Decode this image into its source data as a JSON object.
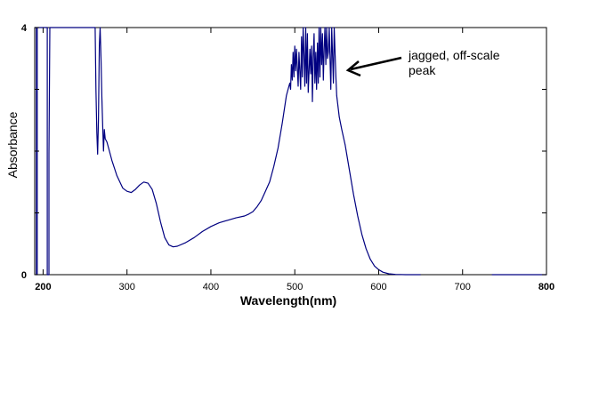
{
  "chart_data": {
    "type": "line",
    "title": "",
    "xlabel": "Wavelength(nm)",
    "ylabel": "Absorbance",
    "xlim": [
      190,
      800
    ],
    "ylim": [
      0,
      4
    ],
    "x_ticks": [
      {
        "value": 200,
        "label": "200",
        "bold": true
      },
      {
        "value": 300,
        "label": "300",
        "bold": false
      },
      {
        "value": 400,
        "label": "400",
        "bold": false
      },
      {
        "value": 500,
        "label": "500",
        "bold": false
      },
      {
        "value": 600,
        "label": "600",
        "bold": false
      },
      {
        "value": 700,
        "label": "700",
        "bold": false
      },
      {
        "value": 800,
        "label": "800",
        "bold": true
      }
    ],
    "y_ticks": [
      {
        "value": 0,
        "label": "0"
      },
      {
        "value": 1,
        "label": ""
      },
      {
        "value": 2,
        "label": ""
      },
      {
        "value": 3,
        "label": ""
      },
      {
        "value": 4,
        "label": "4"
      }
    ],
    "grid": false,
    "line_color": "#000080",
    "annotation": {
      "lines": [
        "jagged, off-scale",
        "peak"
      ],
      "points_to": [
        546,
        3.3
      ]
    },
    "series": [
      {
        "values": [
          [
            190,
            4
          ],
          [
            192,
            4
          ],
          [
            192,
            0
          ],
          [
            193,
            0
          ],
          [
            193,
            4
          ],
          [
            205,
            4
          ],
          [
            205,
            0
          ],
          [
            207,
            0
          ],
          [
            207,
            1.95
          ],
          [
            208,
            4
          ],
          [
            262,
            4
          ],
          [
            263,
            3.0
          ],
          [
            264,
            2.3
          ],
          [
            265,
            1.95
          ],
          [
            266,
            2.5
          ],
          [
            267,
            3.7
          ],
          [
            268,
            4
          ],
          [
            269,
            3.5
          ],
          [
            270,
            2.9
          ],
          [
            271,
            2.4
          ],
          [
            272,
            2.0
          ],
          [
            273,
            2.35
          ],
          [
            274,
            2.2
          ],
          [
            276,
            2.15
          ],
          [
            278,
            2.05
          ],
          [
            282,
            1.85
          ],
          [
            288,
            1.6
          ],
          [
            295,
            1.4
          ],
          [
            300,
            1.35
          ],
          [
            305,
            1.33
          ],
          [
            310,
            1.38
          ],
          [
            315,
            1.45
          ],
          [
            320,
            1.5
          ],
          [
            325,
            1.48
          ],
          [
            330,
            1.38
          ],
          [
            335,
            1.15
          ],
          [
            340,
            0.85
          ],
          [
            345,
            0.6
          ],
          [
            350,
            0.48
          ],
          [
            355,
            0.45
          ],
          [
            360,
            0.46
          ],
          [
            370,
            0.52
          ],
          [
            380,
            0.6
          ],
          [
            390,
            0.7
          ],
          [
            400,
            0.78
          ],
          [
            410,
            0.84
          ],
          [
            420,
            0.88
          ],
          [
            430,
            0.92
          ],
          [
            440,
            0.95
          ],
          [
            445,
            0.98
          ],
          [
            450,
            1.02
          ],
          [
            455,
            1.1
          ],
          [
            460,
            1.2
          ],
          [
            465,
            1.35
          ],
          [
            470,
            1.5
          ],
          [
            475,
            1.75
          ],
          [
            480,
            2.05
          ],
          [
            485,
            2.45
          ],
          [
            490,
            2.9
          ],
          [
            493,
            3.05
          ],
          [
            494,
            3.1
          ],
          [
            495,
            3.0
          ],
          [
            496,
            3.4
          ],
          [
            497,
            3.15
          ],
          [
            498,
            3.6
          ],
          [
            499,
            3.2
          ],
          [
            500,
            3.7
          ],
          [
            501,
            3.3
          ],
          [
            502,
            3.65
          ],
          [
            504,
            3.05
          ],
          [
            505,
            3.6
          ],
          [
            507,
            3.0
          ],
          [
            508,
            3.85
          ],
          [
            509,
            3.2
          ],
          [
            510,
            4
          ],
          [
            511,
            3.55
          ],
          [
            512,
            3.05
          ],
          [
            513,
            4
          ],
          [
            514,
            3.1
          ],
          [
            515,
            3.9
          ],
          [
            516,
            2.95
          ],
          [
            518,
            3.65
          ],
          [
            519,
            3.25
          ],
          [
            520,
            3.7
          ],
          [
            521,
            2.8
          ],
          [
            522,
            3.55
          ],
          [
            523,
            3.9
          ],
          [
            524,
            3.1
          ],
          [
            525,
            3.6
          ],
          [
            526,
            3.0
          ],
          [
            527,
            3.75
          ],
          [
            528,
            3.1
          ],
          [
            529,
            4
          ],
          [
            530,
            3.2
          ],
          [
            531,
            4
          ],
          [
            532,
            3.4
          ],
          [
            533,
            3.9
          ],
          [
            534,
            3.15
          ],
          [
            535,
            3.65
          ],
          [
            536,
            4
          ],
          [
            537,
            3.4
          ],
          [
            538,
            4
          ],
          [
            539,
            3.5
          ],
          [
            540,
            3.6
          ],
          [
            541,
            4
          ],
          [
            543,
            3.0
          ],
          [
            544,
            4
          ],
          [
            546,
            3.1
          ],
          [
            547,
            4
          ],
          [
            549,
            3.2
          ],
          [
            550,
            2.9
          ],
          [
            553,
            2.55
          ],
          [
            556,
            2.35
          ],
          [
            560,
            2.1
          ],
          [
            565,
            1.7
          ],
          [
            570,
            1.3
          ],
          [
            575,
            0.95
          ],
          [
            580,
            0.65
          ],
          [
            585,
            0.42
          ],
          [
            590,
            0.25
          ],
          [
            595,
            0.14
          ],
          [
            600,
            0.08
          ],
          [
            605,
            0.04
          ],
          [
            612,
            0.015
          ],
          [
            620,
            0.005
          ],
          [
            632,
            0.0
          ],
          [
            650,
            0.0
          ]
        ]
      },
      {
        "values": [
          [
            735,
            0.0
          ],
          [
            800,
            0.0
          ]
        ]
      }
    ]
  }
}
